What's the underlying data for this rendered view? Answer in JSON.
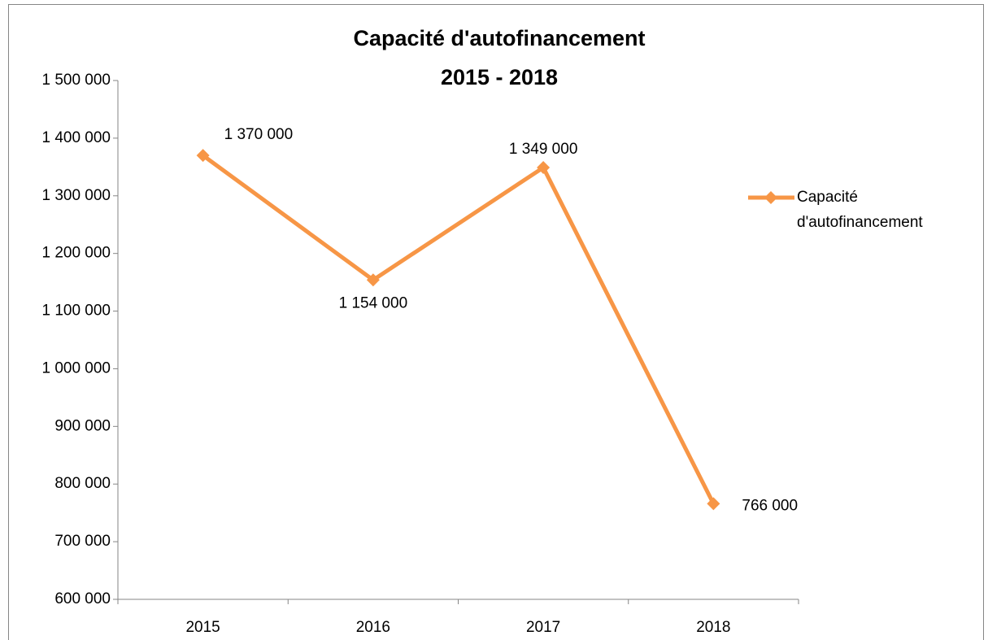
{
  "chart_data": {
    "type": "line",
    "title": "Capacité d'autofinancement",
    "subtitle": "2015 - 2018",
    "categories": [
      "2015",
      "2016",
      "2017",
      "2018"
    ],
    "series": [
      {
        "name": "Capacité d'autofinancement",
        "color": "#f79646",
        "values": [
          1370000,
          1154000,
          1349000,
          766000
        ],
        "value_labels": [
          "1 370 000",
          "1 154 000",
          "1 349 000",
          "766 000"
        ]
      }
    ],
    "ylim": [
      600000,
      1500000
    ],
    "yticks": [
      {
        "value": 600000,
        "label": "600 000"
      },
      {
        "value": 700000,
        "label": "700 000"
      },
      {
        "value": 800000,
        "label": "800 000"
      },
      {
        "value": 900000,
        "label": "900 000"
      },
      {
        "value": 1000000,
        "label": "1 000 000"
      },
      {
        "value": 1100000,
        "label": "1 100 000"
      },
      {
        "value": 1200000,
        "label": "1 200 000"
      },
      {
        "value": 1300000,
        "label": "1 300 000"
      },
      {
        "value": 1400000,
        "label": "1 400 000"
      },
      {
        "value": 1500000,
        "label": "1 500 000"
      }
    ],
    "grid": false,
    "legend": "right"
  }
}
